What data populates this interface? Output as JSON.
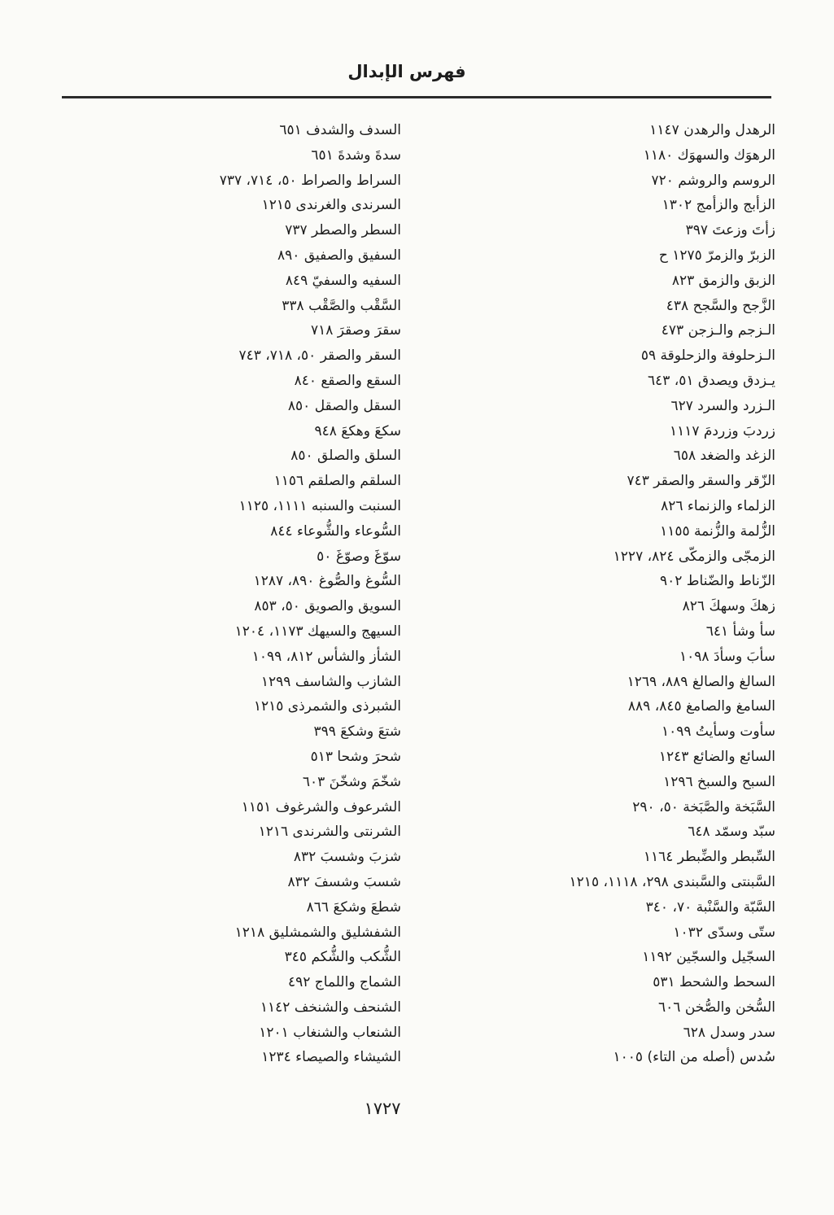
{
  "header": {
    "title": "فهرس الإبدال"
  },
  "footer": {
    "page_number": "١٧٢٧"
  },
  "index": {
    "right_column": [
      "الرهدل والرهدن ١١٤٧",
      "الرهوَك والسهوَك ١١٨٠",
      "الروسم والروشم ٧٢٠",
      "الزأبج والزأمج ١٣٠٢",
      "زأتَ وزعتَ ٣٩٧",
      "الزبرّ والزمرّ ١٢٧٥ ح",
      "الزبق والزمق ٨٢٣",
      "الزَّجح والسَّجح ٤٣٨",
      "الـزجم والـزجن ٤٧٣",
      "الـزحلوفة والزحلوقة ٥٩",
      "يـزدق ويصدق ٥١، ٦٤٣",
      "الـزرد والسرد ٦٢٧",
      "زردبَ وزردمَ ١١١٧",
      "الزغد والضغد ٦٥٨",
      "الزّقر والسقر والصقر ٧٤٣",
      "الزلماء والزنماء ٨٢٦",
      "الزُّلمة والزُّنمة ١١٥٥",
      "الزمجّى والزمكّى ٨٢٤، ١٢٢٧",
      "الزّناط والضّناط ٩٠٢",
      "زهكَ وسهكَ ٨٢٦",
      "سأ وشأ ٦٤١",
      "سأبَ وسأدَ ١٠٩٨",
      "السالغ والصالغ ٨٨٩، ١٢٦٩",
      "السامغ والصامغ ٨٤٥، ٨٨٩",
      "سأوت وسأيتُ ١٠٩٩",
      "السائع والضائع ١٢٤٣",
      "السبح والسبخ ١٢٩٦",
      "السَّبَخة والصَّبَخة ٥٠، ٢٩٠",
      "سبّد وسمّد ٦٤٨",
      "السِّبطر والضِّبطر ١١٦٤",
      "السَّبنتى والسَّبندى ٢٩٨، ١١١٨، ١٢١٥",
      "السَّبّة والسَّنْبة ٧٠، ٣٤٠",
      "ستّى وسدّى ١٠٣٢",
      "السجّيل والسجّين ١١٩٢",
      "السحط والشحط ٥٣١",
      "السُّخن والصُّخن ٦٠٦",
      "سدر وسدل ٦٢٨",
      "سُدس (أصله من التاء) ١٠٠٥"
    ],
    "left_column": [
      "السدف والشدف ٦٥١",
      "سدةَ وشدةَ ٦٥١",
      "السراط والصراط ٥٠، ٧١٤، ٧٣٧",
      "السرندى والغرندى ١٢١٥",
      "السطر والصطر ٧٣٧",
      "السفيق والصفيق ٨٩٠",
      "السفيه والسفيّ ٨٤٩",
      "السَّقْب والصَّقْب ٣٣٨",
      "سقرَ وصقرَ ٧١٨",
      "السقر والصقر ٥٠، ٧١٨، ٧٤٣",
      "السقع والصقع ٨٤٠",
      "السقل والصقل ٨٥٠",
      "سكعَ وهكعَ ٩٤٨",
      "السلق والصلق ٨٥٠",
      "السلقم والصلقم ١١٥٦",
      "السنبت والسنبه ١١١١، ١١٢٥",
      "السُّوعاء والشُّوعاء ٨٤٤",
      "سوّغَ وصوّغَ ٥٠",
      "السُّوغ والصُّوغ ٨٩٠، ١٢٨٧",
      "السويق والصويق ٥٠، ٨٥٣",
      "السيهج والسيهك ١١٧٣، ١٢٠٤",
      "الشأز والشأس ٨١٢، ١٠٩٩",
      "الشازب والشاسف ١٢٩٩",
      "الشبرذى والشمرذى ١٢١٥",
      "شتعَ وشكعَ ٣٩٩",
      "شحرَ وشحا ٥١٣",
      "شخّمَ وشخّنَ ٦٠٣",
      "الشرعوف والشرغوف ١١٥١",
      "الشرنتى والشرندى ١٢١٦",
      "شزبَ وشسبَ ٨٣٢",
      "شسبَ وشسفَ ٨٣٢",
      "شطعَ وشكعَ ٨٦٦",
      "الشفشليق والشمشليق ١٢١٨",
      "الشُّكب والشُّكم ٣٤٥",
      "الشماج واللماج ٤٩٢",
      "الشنحف والشنخف ١١٤٢",
      "الشنعاب والشنغاب ١٢٠١",
      "الشيشاء والصيصاء ١٢٣٤"
    ]
  }
}
